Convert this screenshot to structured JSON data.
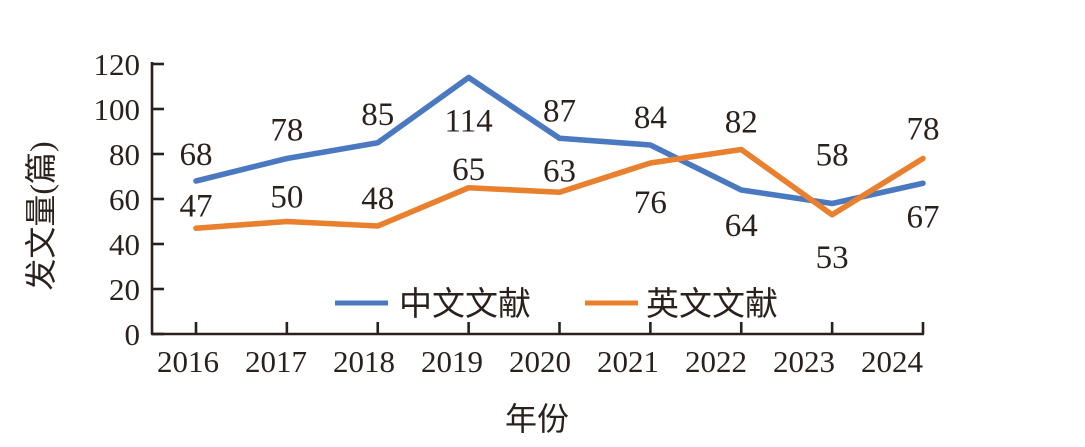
{
  "figure": {
    "background": "#ffffff",
    "text_color": "#2a211d",
    "axis_color": "#2a211d"
  },
  "chart_data": {
    "type": "line",
    "categories": [
      "2016",
      "2017",
      "2018",
      "2019",
      "2020",
      "2021",
      "2022",
      "2023",
      "2024"
    ],
    "series": [
      {
        "name": "中文文献",
        "color": "#4b79c1",
        "values": [
          68,
          78,
          85,
          114,
          87,
          84,
          64,
          58,
          67
        ],
        "label_dy": [
          -16,
          -18,
          -18,
          54,
          -17,
          -17,
          46,
          -38,
          44
        ]
      },
      {
        "name": "英文文献",
        "color": "#e9802e",
        "values": [
          47,
          50,
          48,
          65,
          63,
          76,
          82,
          53,
          78
        ],
        "label_dy": [
          -12,
          -14,
          -17,
          -8,
          -11,
          50,
          -17,
          53,
          -19
        ]
      }
    ],
    "title": "",
    "xlabel": "年份",
    "ylabel": "发文量(篇)",
    "ylim": [
      0,
      120
    ],
    "yticks": [
      0,
      20,
      40,
      60,
      80,
      100,
      120
    ],
    "grid": false,
    "markers": false,
    "legend_position": "inside-bottom",
    "tick_style": "inside"
  }
}
